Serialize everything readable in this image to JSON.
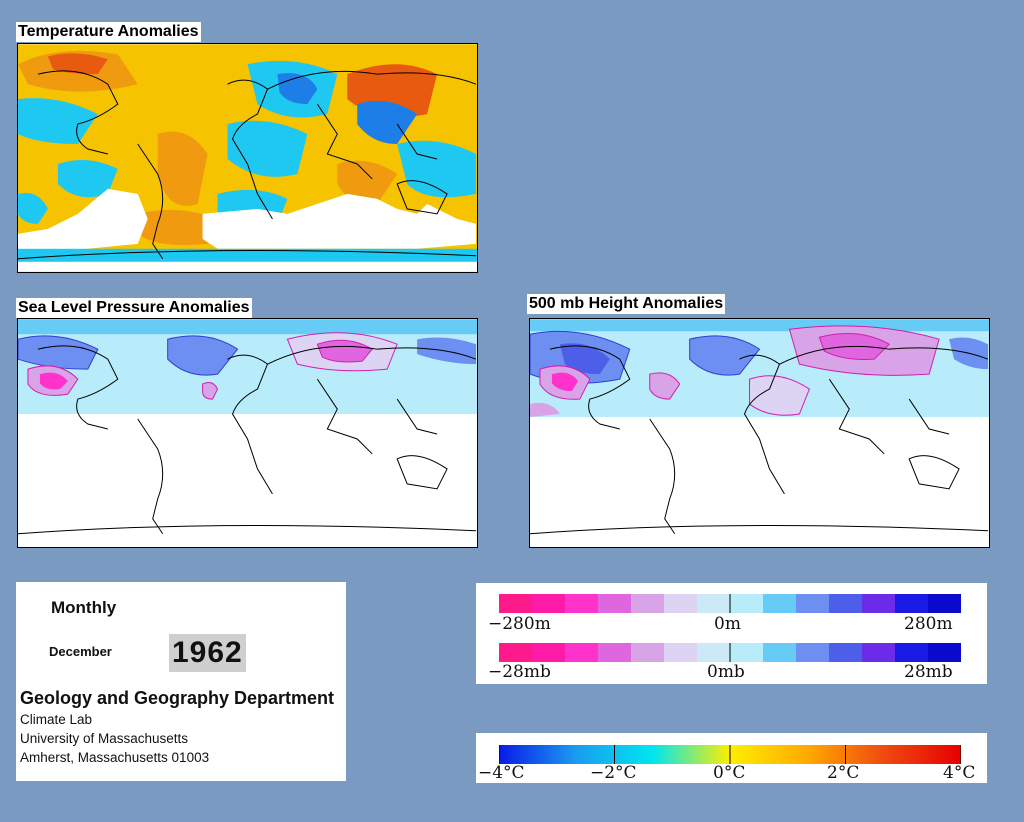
{
  "maps": {
    "temperature": {
      "title": "Temperature Anomalies"
    },
    "slp": {
      "title": "Sea Level Pressure Anomalies"
    },
    "height": {
      "title": "500 mb Height Anomalies"
    }
  },
  "info": {
    "period": "Monthly",
    "month": "December",
    "year": "1962",
    "department": "Geology and Geography Department",
    "lines": [
      "Climate Lab",
      "University of Massachusetts",
      "Amherst, Massachusetts 01003"
    ]
  },
  "legend_height": {
    "labels": [
      "−280m",
      "0m",
      "280m"
    ],
    "colors": [
      "#ff1a8c",
      "#ff1aa8",
      "#ff33cc",
      "#e066e0",
      "#d9a3e8",
      "#dcd4f2",
      "#cce9f7",
      "#b8ecfa",
      "#66ccf5",
      "#6d8ff2",
      "#4d5fe8",
      "#6b2be8",
      "#1a1ae6",
      "#0a0acf"
    ]
  },
  "legend_pressure": {
    "labels": [
      "−28mb",
      "0mb",
      "28mb"
    ],
    "colors": [
      "#ff1a8c",
      "#ff1aa8",
      "#ff33cc",
      "#e066e0",
      "#d9a3e8",
      "#dcd4f2",
      "#cce9f7",
      "#b8ecfa",
      "#66ccf5",
      "#6d8ff2",
      "#4d5fe8",
      "#6b2be8",
      "#1a1ae6",
      "#0a0acf"
    ]
  },
  "legend_temperature": {
    "labels": [
      "−4°C",
      "−2°C",
      "0°C",
      "2°C",
      "4°C"
    ],
    "gradient": [
      "#0a1ae6",
      "#1a9cf0",
      "#00e6f0",
      "#ffee00",
      "#ffaa00",
      "#f04a10",
      "#e60000"
    ]
  }
}
